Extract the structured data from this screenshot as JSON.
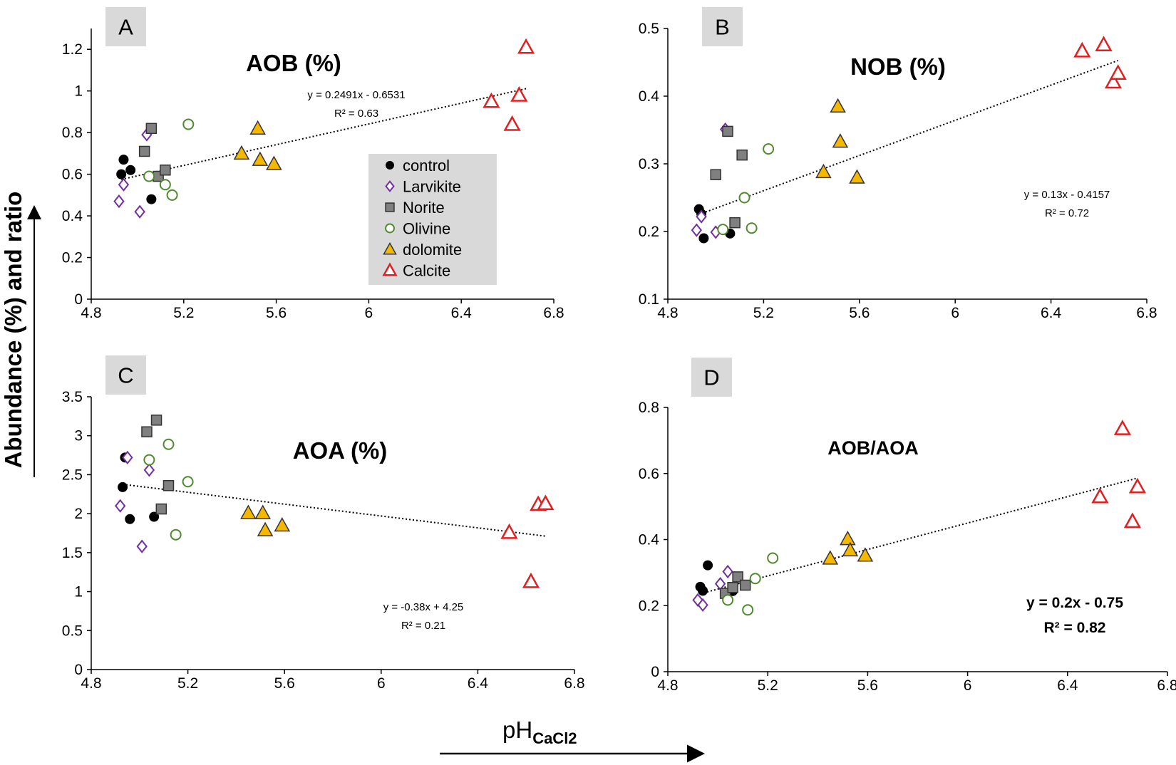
{
  "shared": {
    "y_axis_label": "Abundance (%) and ratio",
    "x_axis_label_main": "pH",
    "x_axis_label_sub": "CaCl2",
    "legend": [
      {
        "name": "control",
        "marker": "circle-filled",
        "color": "#000000"
      },
      {
        "name": "Larvikite",
        "marker": "diamond-open",
        "color": "#7030a0"
      },
      {
        "name": "Norite",
        "marker": "square-filled",
        "color": "#808080"
      },
      {
        "name": "Olivine",
        "marker": "circle-open",
        "color": "#4e8a2e"
      },
      {
        "name": "dolomite",
        "marker": "triangle-filled",
        "color": "#f5b800"
      },
      {
        "name": "Calcite",
        "marker": "triangle-open",
        "color": "#e02020"
      }
    ],
    "legend_background": "#d9d9d9",
    "panel_label_background": "#d9d9d9"
  },
  "chart_data": [
    {
      "panel": "A",
      "type": "scatter",
      "title": "AOB (%)",
      "xlim": [
        4.8,
        6.8
      ],
      "ylim": [
        0,
        1.3
      ],
      "xticks": [
        4.8,
        5.2,
        5.6,
        6,
        6.4,
        6.8
      ],
      "xtick_labels": [
        "4.8",
        "5.2",
        "5.6",
        "6",
        "6.4",
        "6.8"
      ],
      "yticks": [
        0,
        0.2,
        0.4,
        0.6,
        0.8,
        1,
        1.2
      ],
      "ytick_labels": [
        "0",
        "0.2",
        "0.4",
        "0.6",
        "0.8",
        "1",
        "1.2"
      ],
      "trendline": {
        "slope": 0.2491,
        "intercept": -0.6531,
        "x_range": [
          4.93,
          6.68
        ]
      },
      "equation": "y = 0.2491x - 0.6531",
      "r2": "R² = 0.63",
      "series": [
        {
          "name": "control",
          "points": [
            [
              4.93,
              0.6
            ],
            [
              4.94,
              0.67
            ],
            [
              4.97,
              0.62
            ],
            [
              5.06,
              0.48
            ]
          ]
        },
        {
          "name": "Larvikite",
          "points": [
            [
              4.92,
              0.47
            ],
            [
              4.94,
              0.55
            ],
            [
              5.01,
              0.42
            ],
            [
              5.04,
              0.79
            ]
          ]
        },
        {
          "name": "Norite",
          "points": [
            [
              5.03,
              0.71
            ],
            [
              5.06,
              0.82
            ],
            [
              5.09,
              0.59
            ],
            [
              5.12,
              0.62
            ]
          ]
        },
        {
          "name": "Olivine",
          "points": [
            [
              5.05,
              0.59
            ],
            [
              5.12,
              0.55
            ],
            [
              5.15,
              0.5
            ],
            [
              5.22,
              0.84
            ]
          ]
        },
        {
          "name": "dolomite",
          "points": [
            [
              5.45,
              0.7
            ],
            [
              5.52,
              0.82
            ],
            [
              5.53,
              0.67
            ],
            [
              5.59,
              0.65
            ]
          ]
        },
        {
          "name": "Calcite",
          "points": [
            [
              6.53,
              0.95
            ],
            [
              6.62,
              0.84
            ],
            [
              6.65,
              0.98
            ],
            [
              6.68,
              1.21
            ]
          ]
        }
      ]
    },
    {
      "panel": "B",
      "type": "scatter",
      "title": "NOB (%)",
      "xlim": [
        4.8,
        6.8
      ],
      "ylim": [
        0.1,
        0.5
      ],
      "xticks": [
        4.8,
        5.2,
        5.6,
        6,
        6.4,
        6.8
      ],
      "xtick_labels": [
        "4.8",
        "5.2",
        "5.6",
        "6",
        "6.4",
        "6.8"
      ],
      "yticks": [
        0.1,
        0.2,
        0.3,
        0.4,
        0.5
      ],
      "ytick_labels": [
        "0.1",
        "0.2",
        "0.3",
        "0.4",
        "0.5"
      ],
      "trendline": {
        "slope": 0.13,
        "intercept": -0.4157,
        "x_range": [
          4.93,
          6.68
        ]
      },
      "equation": "y = 0.13x - 0.4157",
      "r2": "R² = 0.72",
      "series": [
        {
          "name": "control",
          "points": [
            [
              4.93,
              0.233
            ],
            [
              4.95,
              0.19
            ],
            [
              5.06,
              0.197
            ],
            [
              4.94,
              0.226
            ]
          ]
        },
        {
          "name": "Larvikite",
          "points": [
            [
              4.92,
              0.202
            ],
            [
              4.94,
              0.222
            ],
            [
              5.0,
              0.199
            ],
            [
              5.04,
              0.351
            ]
          ]
        },
        {
          "name": "Norite",
          "points": [
            [
              5.0,
              0.284
            ],
            [
              5.05,
              0.348
            ],
            [
              5.08,
              0.213
            ],
            [
              5.11,
              0.313
            ]
          ]
        },
        {
          "name": "Olivine",
          "points": [
            [
              5.03,
              0.203
            ],
            [
              5.12,
              0.25
            ],
            [
              5.15,
              0.205
            ],
            [
              5.22,
              0.322
            ]
          ]
        },
        {
          "name": "dolomite",
          "points": [
            [
              5.45,
              0.288
            ],
            [
              5.51,
              0.385
            ],
            [
              5.52,
              0.333
            ],
            [
              5.59,
              0.28
            ]
          ]
        },
        {
          "name": "Calcite",
          "points": [
            [
              6.53,
              0.467
            ],
            [
              6.62,
              0.476
            ],
            [
              6.66,
              0.421
            ],
            [
              6.68,
              0.434
            ]
          ]
        }
      ]
    },
    {
      "panel": "C",
      "type": "scatter",
      "title": "AOA (%)",
      "xlim": [
        4.8,
        6.8
      ],
      "ylim": [
        0,
        3.5
      ],
      "xticks": [
        4.8,
        5.2,
        5.6,
        6,
        6.4,
        6.8
      ],
      "xtick_labels": [
        "4.8",
        "5.2",
        "5.6",
        "6",
        "6.4",
        "6.8"
      ],
      "yticks": [
        0,
        0.5,
        1,
        1.5,
        2,
        2.5,
        3,
        3.5
      ],
      "ytick_labels": [
        "0",
        "0.5",
        "1",
        "1.5",
        "2",
        "2.5",
        "3",
        "3.5"
      ],
      "trendline": {
        "slope": -0.38,
        "intercept": 4.25,
        "x_range": [
          4.93,
          6.68
        ]
      },
      "equation": "y = -0.38x + 4.25",
      "r2": "R² = 0.21",
      "series": [
        {
          "name": "control",
          "points": [
            [
              4.93,
              2.34
            ],
            [
              4.96,
              1.93
            ],
            [
              5.06,
              1.96
            ],
            [
              4.94,
              2.72
            ]
          ]
        },
        {
          "name": "Larvikite",
          "points": [
            [
              4.92,
              2.1
            ],
            [
              4.95,
              2.72
            ],
            [
              5.01,
              1.58
            ],
            [
              5.04,
              2.56
            ]
          ]
        },
        {
          "name": "Norite",
          "points": [
            [
              5.03,
              3.05
            ],
            [
              5.07,
              3.2
            ],
            [
              5.09,
              2.06
            ],
            [
              5.12,
              2.36
            ]
          ]
        },
        {
          "name": "Olivine",
          "points": [
            [
              5.04,
              2.69
            ],
            [
              5.12,
              2.89
            ],
            [
              5.15,
              1.73
            ],
            [
              5.2,
              2.41
            ]
          ]
        },
        {
          "name": "dolomite",
          "points": [
            [
              5.45,
              2.01
            ],
            [
              5.51,
              2.01
            ],
            [
              5.52,
              1.79
            ],
            [
              5.59,
              1.85
            ]
          ]
        },
        {
          "name": "Calcite",
          "points": [
            [
              6.53,
              1.76
            ],
            [
              6.62,
              1.13
            ],
            [
              6.65,
              2.12
            ],
            [
              6.68,
              2.13
            ]
          ]
        }
      ]
    },
    {
      "panel": "D",
      "type": "scatter",
      "title": "AOB/AOA",
      "xlim": [
        4.8,
        6.8
      ],
      "ylim": [
        0,
        0.8
      ],
      "xticks": [
        4.8,
        5.2,
        5.6,
        6,
        6.4,
        6.8
      ],
      "xtick_labels": [
        "4.8",
        "5.2",
        "5.6",
        "6",
        "6.4",
        "6.8"
      ],
      "yticks": [
        0,
        0.2,
        0.4,
        0.6,
        0.8
      ],
      "ytick_labels": [
        "0",
        "0.2",
        "0.4",
        "0.6",
        "0.8"
      ],
      "trendline": {
        "slope": 0.2,
        "intercept": -0.75,
        "x_range": [
          4.93,
          6.68
        ]
      },
      "equation": "y = 0.2x - 0.75",
      "r2": "R² = 0.82",
      "series": [
        {
          "name": "control",
          "points": [
            [
              4.93,
              0.257
            ],
            [
              4.94,
              0.245
            ],
            [
              4.96,
              0.322
            ],
            [
              5.06,
              0.244
            ]
          ]
        },
        {
          "name": "Larvikite",
          "points": [
            [
              4.92,
              0.217
            ],
            [
              4.94,
              0.202
            ],
            [
              5.01,
              0.266
            ],
            [
              5.04,
              0.303
            ]
          ]
        },
        {
          "name": "Norite",
          "points": [
            [
              5.03,
              0.237
            ],
            [
              5.06,
              0.255
            ],
            [
              5.08,
              0.287
            ],
            [
              5.11,
              0.262
            ]
          ]
        },
        {
          "name": "Olivine",
          "points": [
            [
              5.04,
              0.217
            ],
            [
              5.12,
              0.187
            ],
            [
              5.15,
              0.282
            ],
            [
              5.22,
              0.344
            ]
          ]
        },
        {
          "name": "dolomite",
          "points": [
            [
              5.45,
              0.343
            ],
            [
              5.52,
              0.402
            ],
            [
              5.53,
              0.368
            ],
            [
              5.59,
              0.352
            ]
          ]
        },
        {
          "name": "Calcite",
          "points": [
            [
              6.53,
              0.53
            ],
            [
              6.62,
              0.736
            ],
            [
              6.66,
              0.455
            ],
            [
              6.68,
              0.56
            ]
          ]
        }
      ]
    }
  ]
}
